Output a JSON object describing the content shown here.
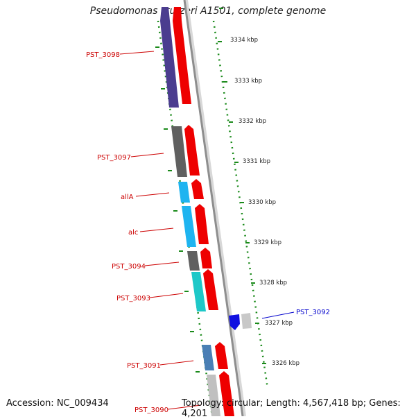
{
  "title": "Pseudomonas stutzeri A1501, complete genome",
  "footer": {
    "accession": "Accession: NC_009434",
    "summary": "Topology: circular; Length: 4,567,418 bp; Genes: 4,201"
  },
  "colors": {
    "backbone": "#8e8e8e",
    "tick": "#1a8a1a",
    "label_red": "#cc0000",
    "label_blue": "#0000cc"
  },
  "scale_labels": [
    "3334 kbp",
    "3333 kbp",
    "3332 kbp",
    "3331 kbp",
    "3330 kbp",
    "3329 kbp",
    "3328 kbp",
    "3327 kbp",
    "3326 kbp"
  ],
  "genes": [
    {
      "label": "PST_3098",
      "label_color": "red",
      "strand_color": "#4b3d8f",
      "strand": "reverse"
    },
    {
      "label": "PST_3097",
      "label_color": "red",
      "strand_color": "#606060",
      "strand": "forward"
    },
    {
      "label": "allA",
      "label_color": "red",
      "strand_color": "#1eb4f0",
      "strand": "forward"
    },
    {
      "label": "alc",
      "label_color": "red",
      "strand_color": "#1eb4f0",
      "strand": "forward"
    },
    {
      "label": "PST_3094",
      "label_color": "red",
      "strand_color": "#606060",
      "strand": "forward"
    },
    {
      "label": "PST_3093",
      "label_color": "red",
      "strand_color": "#1ec8c8",
      "strand": "forward"
    },
    {
      "label": "PST_3092",
      "label_color": "blue",
      "strand_color": "#1010e0",
      "strand": "reverse"
    },
    {
      "label": "PST_3091",
      "label_color": "red",
      "strand_color": "#4a7fb5",
      "strand": "forward"
    },
    {
      "label": "PST_3090",
      "label_color": "red",
      "strand_color": "#c0c0c0",
      "strand": "forward"
    }
  ]
}
